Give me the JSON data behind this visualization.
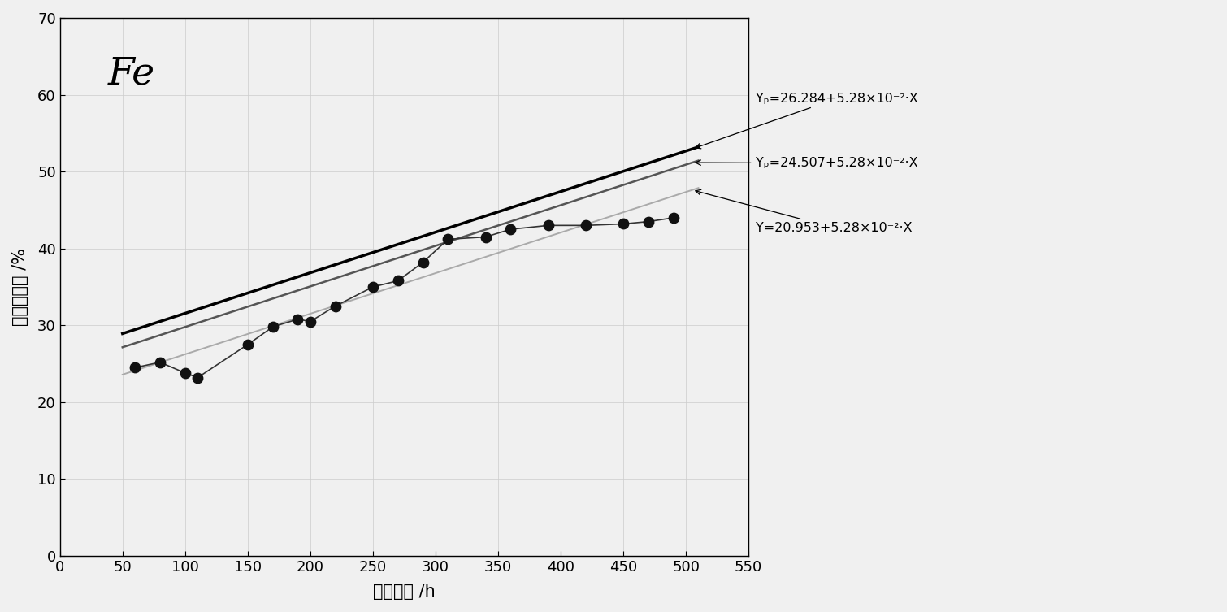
{
  "title_text": "Fe",
  "xlabel": "工作时间 /h",
  "ylabel": "质量百分比 /%",
  "xlim": [
    0,
    550
  ],
  "ylim": [
    0,
    70
  ],
  "xticks": [
    0,
    50,
    100,
    150,
    200,
    250,
    300,
    350,
    400,
    450,
    500,
    550
  ],
  "yticks": [
    0,
    10,
    20,
    30,
    40,
    50,
    60,
    70
  ],
  "slope": 0.0528,
  "intercept_upper": 26.284,
  "intercept_mid": 24.507,
  "intercept_lower": 20.953,
  "line_color_upper": "#000000",
  "line_color_mid": "#555555",
  "line_color_lower": "#aaaaaa",
  "data_x": [
    60,
    80,
    100,
    110,
    150,
    170,
    190,
    200,
    220,
    250,
    270,
    290,
    310,
    340,
    360,
    390,
    420,
    450,
    470,
    490
  ],
  "data_y": [
    24.5,
    25.2,
    23.8,
    23.2,
    27.5,
    29.8,
    30.8,
    30.5,
    32.5,
    35.0,
    35.8,
    38.2,
    41.2,
    41.5,
    42.5,
    43.0,
    43.0,
    43.2,
    43.5,
    44.0
  ],
  "background_color": "#f0f0f0",
  "grid_color": "#cccccc",
  "ann_x": 510,
  "ann_x_start": 505,
  "eq_upper_text": "Yₚ=26.284+5.28×10⁻²·X",
  "eq_mid_text": "Yₚ=24.507+5.28×10⁻²·X",
  "eq_lower_text": "Y=20.953+5.28×10⁻²·X"
}
